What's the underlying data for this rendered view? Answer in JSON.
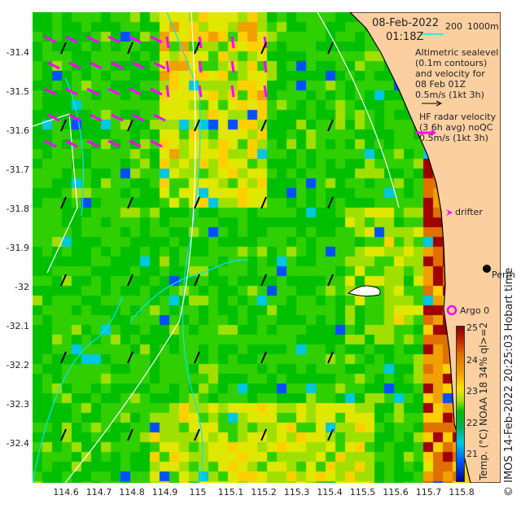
{
  "title": {
    "date": "08-Feb-2022",
    "time": "01:18Z"
  },
  "scale": {
    "label_a": "200",
    "label_b": "1000m"
  },
  "legend": {
    "altimetric": [
      "Altimetric sealevel",
      "(0.1m contours)",
      "and velocity for",
      "08 Feb 01Z",
      "0.5m/s (1kt 3h)"
    ],
    "hf_radar": [
      "HF radar velocity",
      "(3 6h avg) noQC",
      "0.5m/s (1kt 3h)"
    ],
    "drifter": "drifter",
    "argo": "Argo 0",
    "city": "Perth"
  },
  "axes": {
    "y_ticks": [
      "-31.4",
      "-31.5",
      "-31.6",
      "-31.7",
      "-31.8",
      "-31.9",
      "-32",
      "-32.1",
      "-32.2",
      "-32.3",
      "-32.4"
    ],
    "x_ticks": [
      "114.6",
      "114.7",
      "114.8",
      "114.9",
      "115",
      "115.1",
      "115.2",
      "115.3",
      "115.4",
      "115.5",
      "115.6",
      "115.7",
      "115.8"
    ]
  },
  "colorbar": {
    "ticks": [
      "25",
      "24",
      "23",
      "22",
      "21"
    ],
    "range": [
      20.6,
      25.1
    ],
    "label": "Temp. (°C) NOAA 18 34% ql>=2"
  },
  "credit": "© IMOS 14-Feb-2022 20:25:03 Hobart time",
  "colors": {
    "land": "#fbcfa0",
    "hf_arrow": "#ff00ff",
    "contour": "#00e5ff",
    "argo": "#ff00ff"
  }
}
